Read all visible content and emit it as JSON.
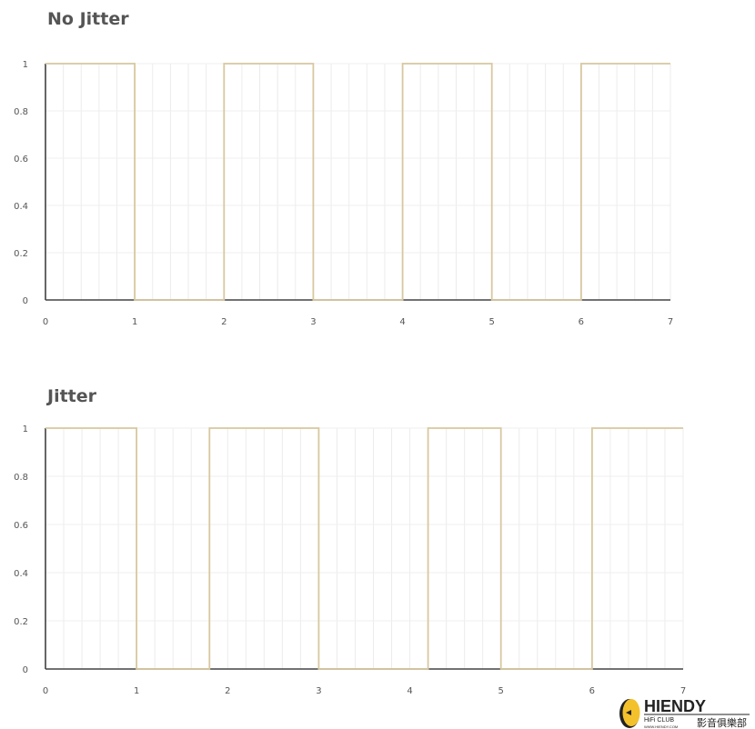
{
  "chart_data": [
    {
      "type": "line",
      "title": "No Jitter",
      "step": true,
      "xlim": [
        0,
        7
      ],
      "ylim": [
        0,
        1
      ],
      "x_ticks": [
        "0",
        "1",
        "2",
        "3",
        "4",
        "5",
        "6",
        "7"
      ],
      "y_ticks": [
        "0",
        "0.2",
        "0.4",
        "0.6",
        "0.8",
        "1"
      ],
      "grid": true,
      "line_color": "#d8c8a0",
      "series": [
        {
          "points": [
            [
              0,
              1
            ],
            [
              1,
              1
            ],
            [
              1,
              0
            ],
            [
              2,
              0
            ],
            [
              2,
              1
            ],
            [
              3,
              1
            ],
            [
              3,
              0
            ],
            [
              4,
              0
            ],
            [
              4,
              1
            ],
            [
              5,
              1
            ],
            [
              5,
              0
            ],
            [
              6,
              0
            ],
            [
              6,
              1
            ],
            [
              7,
              1
            ]
          ]
        }
      ]
    },
    {
      "type": "line",
      "title": "Jitter",
      "step": true,
      "xlim": [
        0,
        7
      ],
      "ylim": [
        0,
        1
      ],
      "x_ticks": [
        "0",
        "1",
        "2",
        "3",
        "4",
        "5",
        "6",
        "7"
      ],
      "y_ticks": [
        "0",
        "0.2",
        "0.4",
        "0.6",
        "0.8",
        "1"
      ],
      "grid": true,
      "line_color": "#d8c8a0",
      "series": [
        {
          "points": [
            [
              0,
              1
            ],
            [
              1,
              1
            ],
            [
              1,
              0
            ],
            [
              1.8,
              0
            ],
            [
              1.8,
              1
            ],
            [
              3,
              1
            ],
            [
              3,
              0
            ],
            [
              4.2,
              0
            ],
            [
              4.2,
              1
            ],
            [
              5,
              1
            ],
            [
              5,
              0
            ],
            [
              6,
              0
            ],
            [
              6,
              1
            ],
            [
              7,
              1
            ]
          ]
        }
      ]
    }
  ],
  "watermark": {
    "brand": "HIENDY",
    "sub": "HiFi CLUB",
    "url": "WWW.HIENDY.COM",
    "cn": "影音俱樂部",
    "color": "#f3c12b"
  }
}
